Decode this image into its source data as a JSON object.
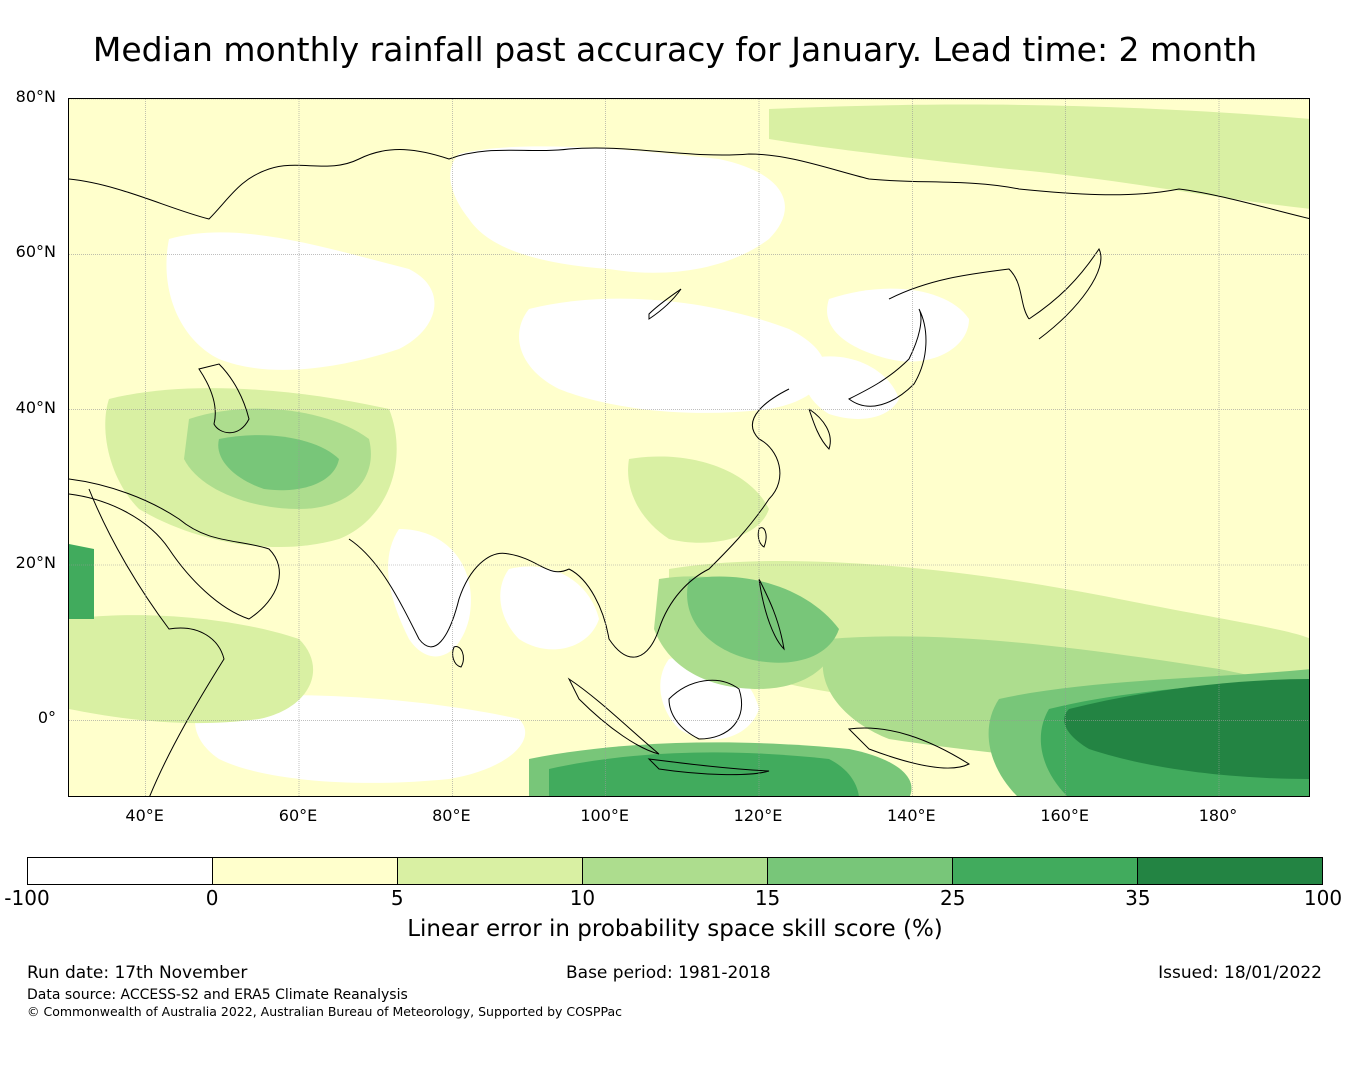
{
  "title": "Median monthly rainfall past accuracy for January. Lead time: 2 month",
  "map": {
    "extent": {
      "lon_min": 30,
      "lon_max": 192,
      "lat_min": -10,
      "lat_max": 80
    },
    "lat_labels": [
      {
        "lat": 80,
        "text": "80°N"
      },
      {
        "lat": 60,
        "text": "60°N"
      },
      {
        "lat": 40,
        "text": "40°N"
      },
      {
        "lat": 20,
        "text": "20°N"
      },
      {
        "lat": 0,
        "text": "0°"
      }
    ],
    "lon_labels": [
      {
        "lon": 40,
        "text": "40°E"
      },
      {
        "lon": 60,
        "text": "60°E"
      },
      {
        "lon": 80,
        "text": "80°E"
      },
      {
        "lon": 100,
        "text": "100°E"
      },
      {
        "lon": 120,
        "text": "120°E"
      },
      {
        "lon": 140,
        "text": "140°E"
      },
      {
        "lon": 160,
        "text": "160°E"
      },
      {
        "lon": 180,
        "text": "180°"
      }
    ],
    "background_color": "#ffffcc"
  },
  "colorbar": {
    "ticks": [
      "-100",
      "0",
      "5",
      "10",
      "15",
      "25",
      "35",
      "100"
    ],
    "colors": [
      "#ffffff",
      "#ffffcc",
      "#d9f0a3",
      "#addd8e",
      "#78c679",
      "#41ab5d",
      "#238443"
    ],
    "label": "Linear error in probability space skill score (%)"
  },
  "footer": {
    "run_date": "Run date: 17th November",
    "base_period": "Base period: 1981-2018",
    "issued": "Issued: 18/01/2022",
    "data_source": "Data source: ACCESS-S2 and ERA5 Climate Reanalysis",
    "copyright": "© Commonwealth of Australia 2022, Australian Bureau of Meteorology, Supported by COSPPac"
  }
}
